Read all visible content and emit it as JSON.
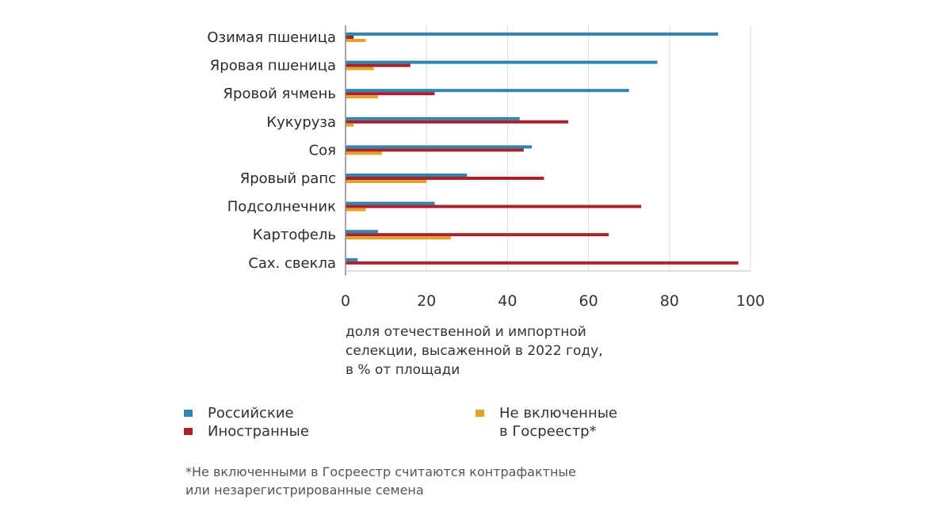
{
  "chart_data": {
    "type": "bar",
    "orientation": "horizontal",
    "categories": [
      "Озимая пшеница",
      "Яровая пшеница",
      "Яровой ячмень",
      "Кукуруза",
      "Соя",
      "Яровый рапс",
      "Подсолнечник",
      "Картофель",
      "Сах. свекла"
    ],
    "series": [
      {
        "name": "Российские",
        "color": "#2e86b1",
        "values": [
          92,
          77,
          70,
          43,
          46,
          30,
          22,
          8,
          3
        ]
      },
      {
        "name": "Иностранные",
        "color": "#a9212b",
        "values": [
          2,
          16,
          22,
          55,
          44,
          49,
          73,
          65,
          97
        ]
      },
      {
        "name": "Не включенные в Госреестр*",
        "color": "#e4a22c",
        "values": [
          5,
          7,
          8,
          2,
          9,
          20,
          5,
          26,
          0
        ]
      }
    ],
    "xlim": [
      0,
      100
    ],
    "xticks": [
      "0",
      "20",
      "40",
      "60",
      "80",
      "100"
    ],
    "caption_lines": [
      "доля отечественной и импортной",
      "селекции, высаженной в 2022 году,",
      "в % от площади"
    ],
    "grid": true
  },
  "legend": {
    "russian": "Российские",
    "foreign": "Иностранные",
    "unregistered_line1": "Не включенные",
    "unregistered_line2": "в Госреестр*"
  },
  "footnote": {
    "line1": "*Не включенными в Госреестр считаются контрафактные",
    "line2": "или незарегистрированные семена"
  }
}
